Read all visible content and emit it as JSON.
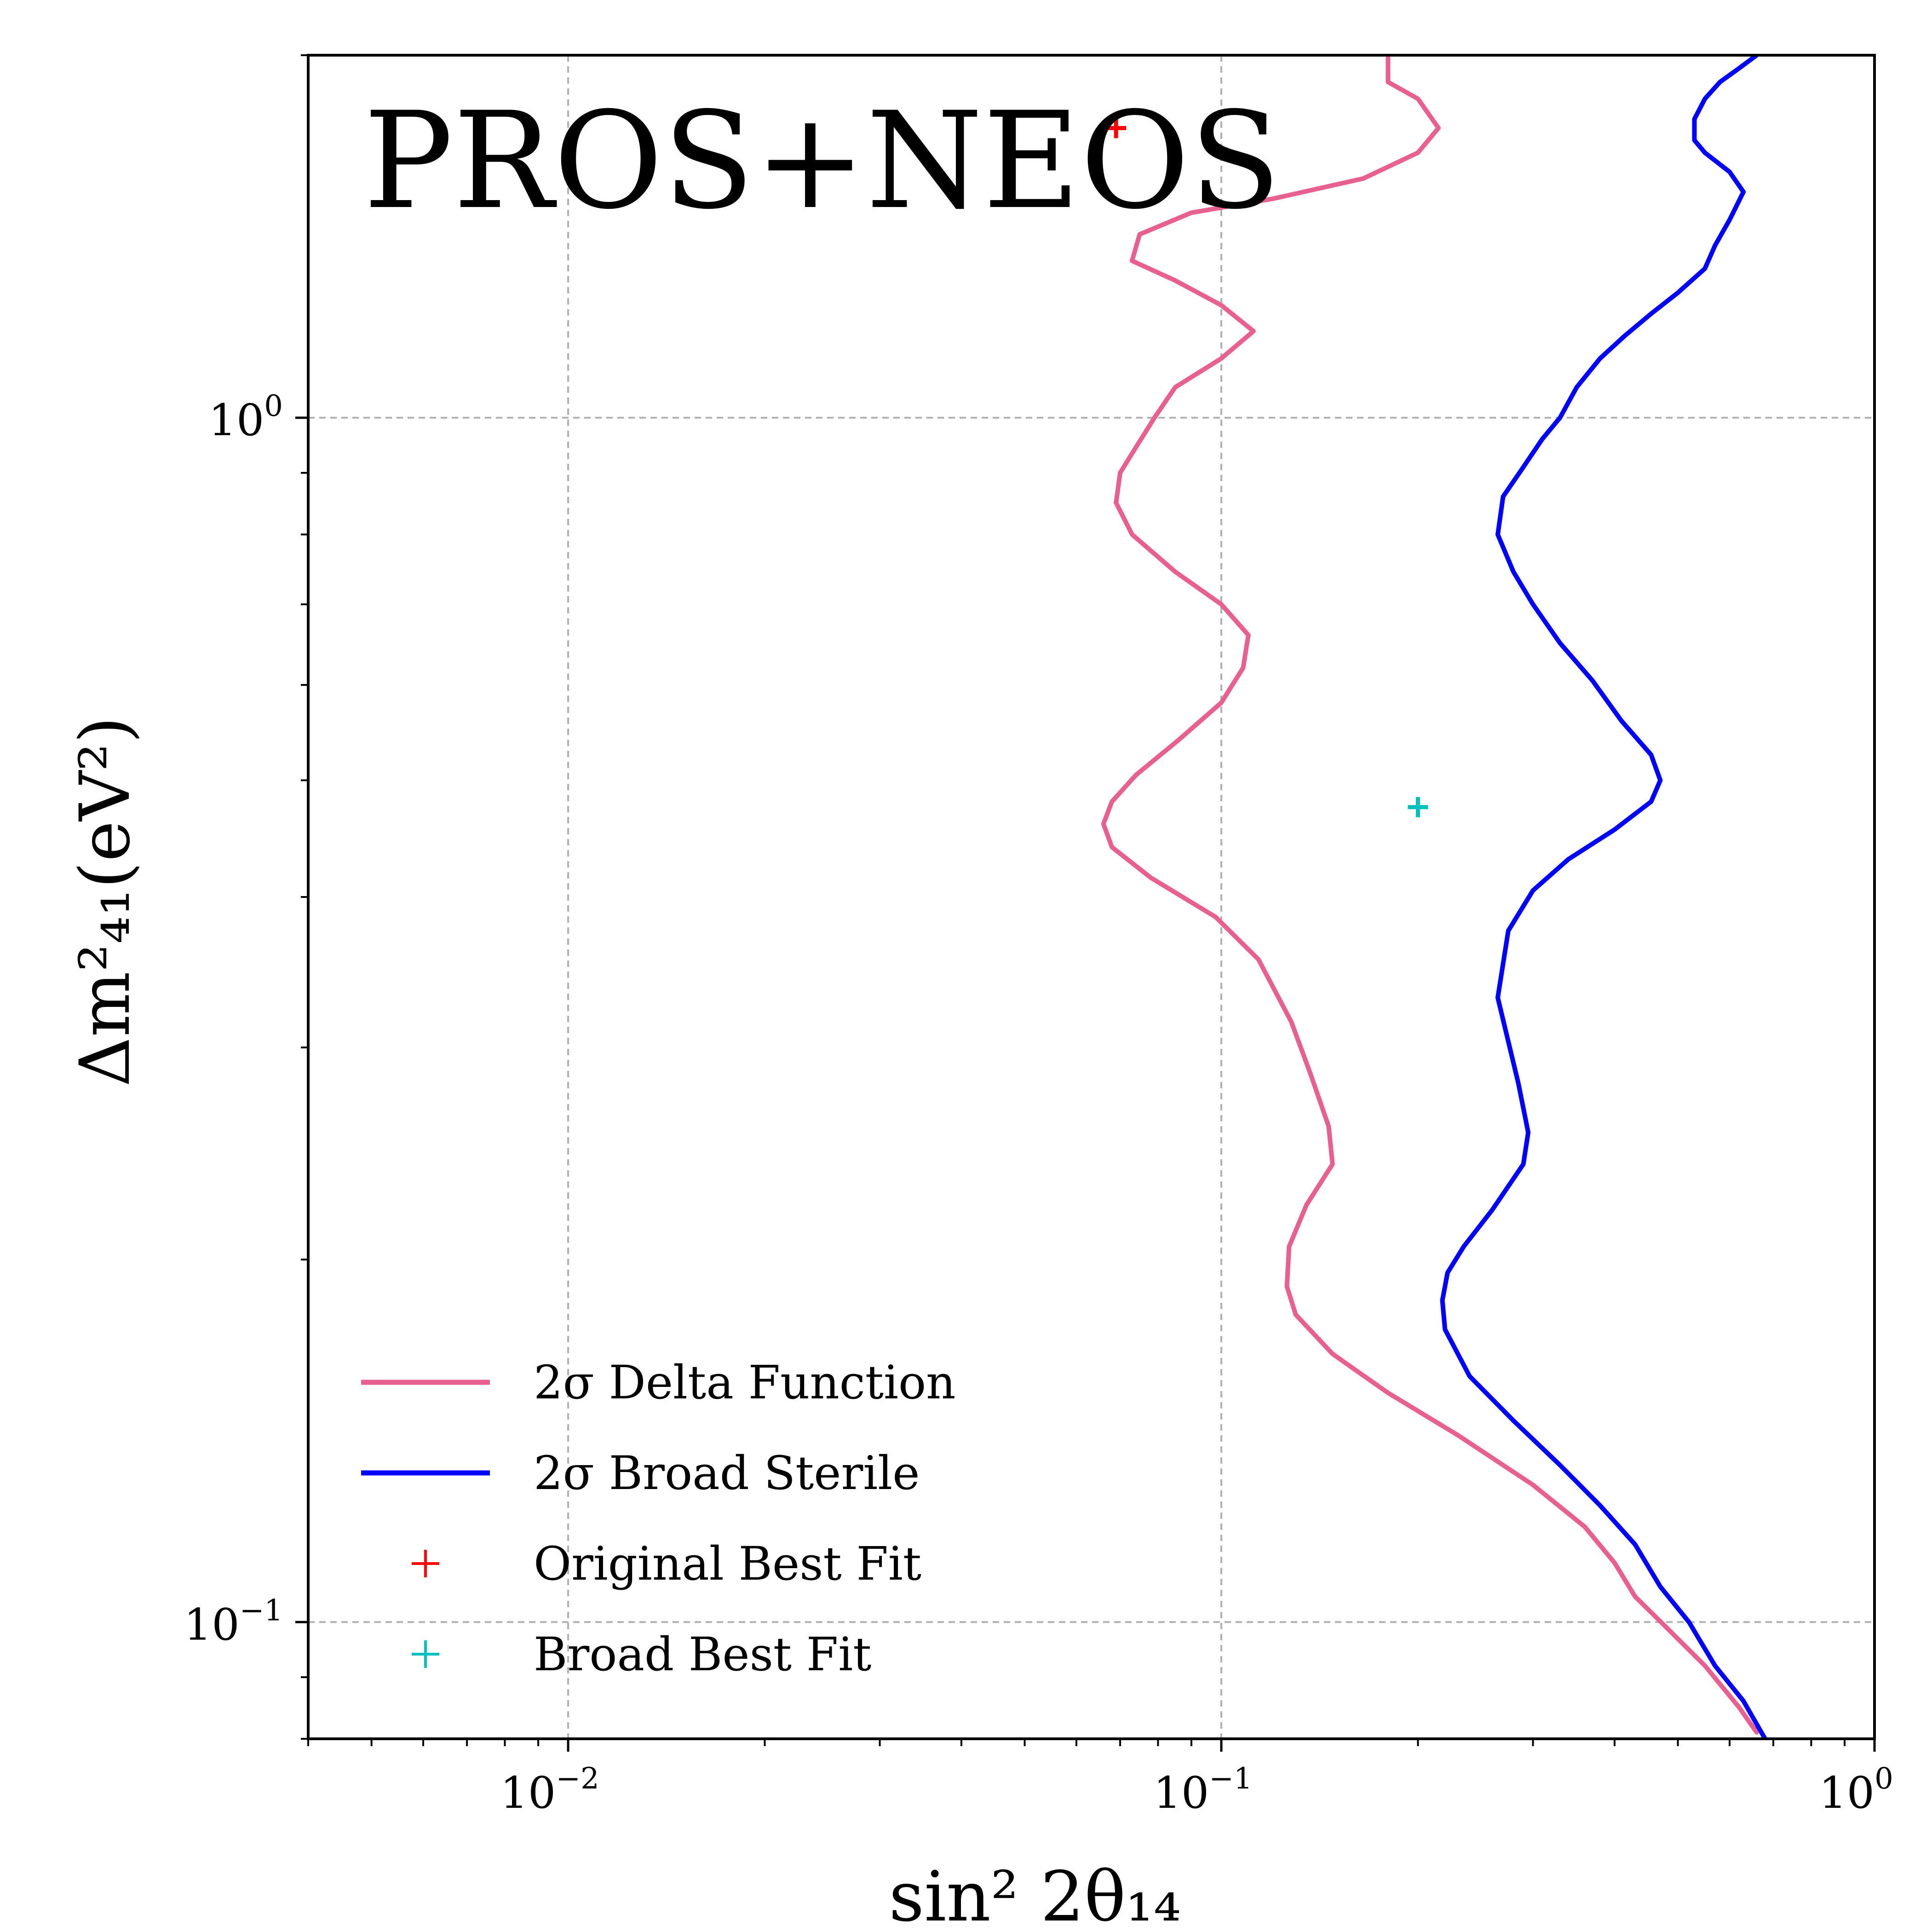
{
  "chart_data": {
    "type": "line",
    "title": "PROS+NEOS",
    "xlabel": "sin² 2θ₁₄",
    "ylabel": "Δm²₄₁(eV²)",
    "x_scale": "log",
    "y_scale": "log",
    "xlim": [
      0.004,
      1.0
    ],
    "ylim": [
      0.08,
      2.0
    ],
    "grid": true,
    "legend_position": "lower-left",
    "x_ticks": [
      {
        "base": "10",
        "exp": "−2",
        "value": 0.01
      },
      {
        "base": "10",
        "exp": "−1",
        "value": 0.1
      },
      {
        "base": "10",
        "exp": "0",
        "value": 1.0
      }
    ],
    "y_ticks": [
      {
        "base": "10",
        "exp": "−1",
        "value": 0.1
      },
      {
        "base": "10",
        "exp": "0",
        "value": 1.0
      }
    ],
    "series": [
      {
        "name": "2σ Delta Function",
        "color": "#e8608f",
        "points": [
          [
            0.18,
            2.0
          ],
          [
            0.18,
            1.9
          ],
          [
            0.2,
            1.84
          ],
          [
            0.215,
            1.74
          ],
          [
            0.2,
            1.66
          ],
          [
            0.165,
            1.58
          ],
          [
            0.12,
            1.52
          ],
          [
            0.09,
            1.48
          ],
          [
            0.075,
            1.42
          ],
          [
            0.073,
            1.35
          ],
          [
            0.085,
            1.3
          ],
          [
            0.1,
            1.24
          ],
          [
            0.112,
            1.18
          ],
          [
            0.1,
            1.12
          ],
          [
            0.085,
            1.06
          ],
          [
            0.079,
            1.0
          ],
          [
            0.074,
            0.945
          ],
          [
            0.07,
            0.9
          ],
          [
            0.069,
            0.85
          ],
          [
            0.073,
            0.8
          ],
          [
            0.085,
            0.745
          ],
          [
            0.1,
            0.7
          ],
          [
            0.11,
            0.66
          ],
          [
            0.108,
            0.62
          ],
          [
            0.1,
            0.58
          ],
          [
            0.086,
            0.54
          ],
          [
            0.074,
            0.505
          ],
          [
            0.068,
            0.48
          ],
          [
            0.066,
            0.46
          ],
          [
            0.068,
            0.44
          ],
          [
            0.078,
            0.415
          ],
          [
            0.098,
            0.385
          ],
          [
            0.114,
            0.355
          ],
          [
            0.128,
            0.315
          ],
          [
            0.137,
            0.285
          ],
          [
            0.146,
            0.258
          ],
          [
            0.148,
            0.24
          ],
          [
            0.135,
            0.222
          ],
          [
            0.127,
            0.205
          ],
          [
            0.126,
            0.19
          ],
          [
            0.13,
            0.18
          ],
          [
            0.148,
            0.167
          ],
          [
            0.18,
            0.155
          ],
          [
            0.23,
            0.143
          ],
          [
            0.3,
            0.13
          ],
          [
            0.36,
            0.12
          ],
          [
            0.4,
            0.112
          ],
          [
            0.43,
            0.105
          ],
          [
            0.48,
            0.099
          ],
          [
            0.55,
            0.092
          ],
          [
            0.62,
            0.085
          ],
          [
            0.66,
            0.081
          ]
        ]
      },
      {
        "name": "2σ Broad Sterile",
        "color": "#0000ff",
        "points": [
          [
            0.66,
            2.0
          ],
          [
            0.62,
            1.95
          ],
          [
            0.58,
            1.9
          ],
          [
            0.55,
            1.84
          ],
          [
            0.53,
            1.77
          ],
          [
            0.53,
            1.7
          ],
          [
            0.55,
            1.66
          ],
          [
            0.6,
            1.6
          ],
          [
            0.63,
            1.54
          ],
          [
            0.6,
            1.46
          ],
          [
            0.57,
            1.39
          ],
          [
            0.55,
            1.33
          ],
          [
            0.5,
            1.27
          ],
          [
            0.455,
            1.22
          ],
          [
            0.415,
            1.17
          ],
          [
            0.38,
            1.12
          ],
          [
            0.35,
            1.06
          ],
          [
            0.33,
            1.0
          ],
          [
            0.31,
            0.96
          ],
          [
            0.29,
            0.91
          ],
          [
            0.27,
            0.86
          ],
          [
            0.265,
            0.8
          ],
          [
            0.28,
            0.745
          ],
          [
            0.3,
            0.7
          ],
          [
            0.33,
            0.65
          ],
          [
            0.37,
            0.605
          ],
          [
            0.41,
            0.56
          ],
          [
            0.455,
            0.525
          ],
          [
            0.47,
            0.5
          ],
          [
            0.455,
            0.48
          ],
          [
            0.4,
            0.455
          ],
          [
            0.34,
            0.43
          ],
          [
            0.3,
            0.405
          ],
          [
            0.275,
            0.375
          ],
          [
            0.265,
            0.33
          ],
          [
            0.285,
            0.28
          ],
          [
            0.295,
            0.255
          ],
          [
            0.29,
            0.24
          ],
          [
            0.26,
            0.22
          ],
          [
            0.235,
            0.205
          ],
          [
            0.222,
            0.195
          ],
          [
            0.218,
            0.185
          ],
          [
            0.22,
            0.175
          ],
          [
            0.24,
            0.16
          ],
          [
            0.28,
            0.147
          ],
          [
            0.33,
            0.135
          ],
          [
            0.38,
            0.125
          ],
          [
            0.43,
            0.116
          ],
          [
            0.47,
            0.107
          ],
          [
            0.52,
            0.1
          ],
          [
            0.57,
            0.092
          ],
          [
            0.63,
            0.086
          ],
          [
            0.68,
            0.08
          ]
        ]
      }
    ],
    "markers": [
      {
        "name": "Original Best Fit",
        "color": "#ff0000",
        "x": 0.069,
        "y": 1.74
      },
      {
        "name": "Broad Best Fit",
        "color": "#00bfbf",
        "x": 0.2,
        "y": 0.475
      }
    ],
    "legend": [
      {
        "label": "2σ Delta Function",
        "kind": "line",
        "color": "#e8608f"
      },
      {
        "label": "2σ Broad Sterile",
        "kind": "line",
        "color": "#0000ff"
      },
      {
        "label": "Original Best Fit",
        "kind": "marker",
        "color": "#ff0000"
      },
      {
        "label": "Broad Best Fit",
        "kind": "marker",
        "color": "#00bfbf"
      }
    ]
  }
}
